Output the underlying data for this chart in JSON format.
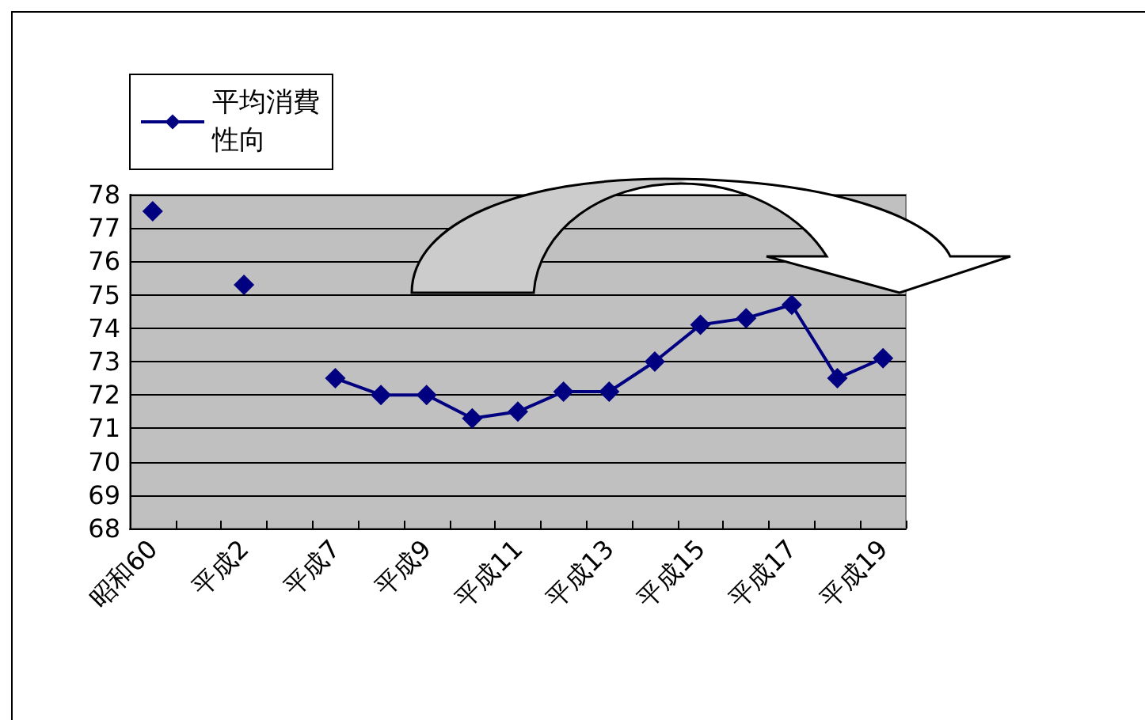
{
  "chart_data": {
    "type": "line",
    "categories": [
      "昭和60",
      null,
      "平成2",
      null,
      "平成7",
      null,
      "平成9",
      null,
      "平成11",
      null,
      "平成13",
      null,
      "平成15",
      null,
      "平成17",
      null,
      "平成19"
    ],
    "series": [
      {
        "name": "平均消費性向",
        "color": "#000080",
        "values": [
          77.5,
          null,
          75.3,
          null,
          72.5,
          72.0,
          72.0,
          71.3,
          71.5,
          72.1,
          72.1,
          73.0,
          74.1,
          74.3,
          74.7,
          72.5,
          73.1
        ]
      }
    ],
    "ylim": [
      68,
      78
    ],
    "yticks": [
      68,
      69,
      70,
      71,
      72,
      73,
      74,
      75,
      76,
      77,
      78
    ],
    "grid": "y",
    "legend": "top left",
    "marker": "diamond",
    "line_style": "solid"
  }
}
